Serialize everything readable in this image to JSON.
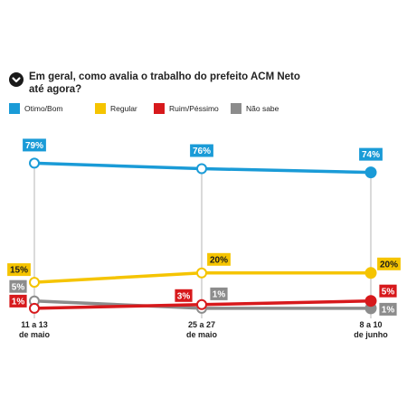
{
  "question": "Em geral, como avalia o trabalho do prefeito ACM Neto até agora?",
  "icons": {
    "header": "chevron-down-icon"
  },
  "chart_data": {
    "type": "line",
    "title": "Em geral, como avalia o trabalho do prefeito ACM Neto até agora?",
    "categories": [
      {
        "line1": "11 a 13",
        "line2": "de maio"
      },
      {
        "line1": "25 a 27",
        "line2": "de maio"
      },
      {
        "line1": "8 a 10",
        "line2": "de junho"
      }
    ],
    "ylim": [
      0,
      85
    ],
    "grid": false,
    "legend_position": "top-left",
    "series": [
      {
        "key": "otimo",
        "name": "Otimo/Bom",
        "color": "#1a9bd7",
        "values": [
          79,
          76,
          74
        ],
        "labels": [
          "79%",
          "76%",
          "74%"
        ]
      },
      {
        "key": "regular",
        "name": "Regular",
        "color": "#f5c400",
        "values": [
          15,
          20,
          20
        ],
        "labels": [
          "15%",
          "20%",
          "20%"
        ]
      },
      {
        "key": "ruim",
        "name": "Ruim/Péssimo",
        "color": "#d7191c",
        "values": [
          1,
          3,
          5
        ],
        "labels": [
          "1%",
          "3%",
          "5%"
        ]
      },
      {
        "key": "naosabe",
        "name": "Não sabe",
        "color": "#8c8c8c",
        "values": [
          5,
          1,
          1
        ],
        "labels": [
          "5%",
          "1%",
          "1%"
        ]
      }
    ]
  }
}
